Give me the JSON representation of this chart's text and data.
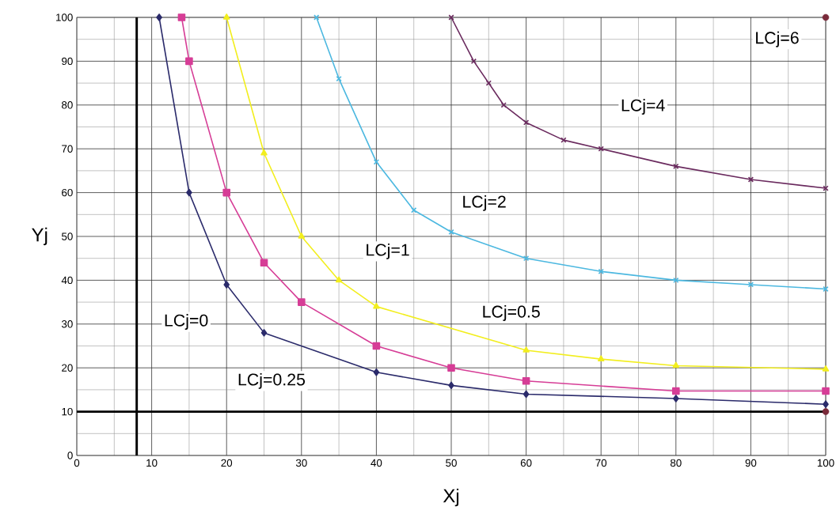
{
  "chart_data": {
    "type": "line",
    "xlabel": "Xj",
    "ylabel": "Yj",
    "xlim": [
      0,
      100
    ],
    "ylim": [
      0,
      100
    ],
    "xticks": [
      0,
      10,
      20,
      30,
      40,
      50,
      60,
      70,
      80,
      90,
      100
    ],
    "yticks": [
      0,
      10,
      20,
      30,
      40,
      50,
      60,
      70,
      80,
      90,
      100
    ],
    "grid": true,
    "line_style": "solid",
    "series": [
      {
        "color": "#2b2b6b",
        "marker": "diamond",
        "x": [
          11,
          15,
          20,
          25,
          40,
          50,
          60,
          80,
          100
        ],
        "values": [
          100,
          60,
          39,
          28,
          19,
          16,
          14,
          13,
          11.7
        ]
      },
      {
        "color": "#d63d96",
        "marker": "square",
        "x": [
          14,
          15,
          20,
          25,
          30,
          40,
          50,
          60,
          80,
          100
        ],
        "values": [
          100,
          90,
          60,
          44,
          35,
          25,
          20,
          17,
          14.7,
          14.7
        ]
      },
      {
        "color": "#f2ee1e",
        "marker": "triangle",
        "x": [
          20,
          25,
          30,
          35,
          40,
          60,
          70,
          80,
          100
        ],
        "values": [
          100,
          69,
          50,
          40,
          34,
          24,
          22,
          20.5,
          19.7
        ]
      },
      {
        "color": "#4cb8e0",
        "marker": "cross",
        "x": [
          32,
          35,
          40,
          45,
          50,
          60,
          70,
          80,
          90,
          100
        ],
        "values": [
          100,
          86,
          67,
          56,
          51,
          45,
          42,
          40,
          39,
          38
        ]
      },
      {
        "color": "#6a2a5e",
        "marker": "cross",
        "x": [
          50,
          53,
          55,
          57,
          60,
          65,
          70,
          80,
          90,
          100
        ],
        "values": [
          100,
          90,
          85,
          80,
          76,
          72,
          70,
          66,
          63,
          61
        ]
      },
      {
        "type": "scatter",
        "color": "#7a2a3a",
        "marker": "circle",
        "x": [
          100,
          100
        ],
        "values": [
          100,
          10
        ]
      }
    ],
    "ref_lines": [
      {
        "axis": "x",
        "value": 8,
        "color": "#000000"
      },
      {
        "axis": "y",
        "value": 10,
        "color": "#000000"
      }
    ],
    "annotations": [
      "LCj=0",
      "LCj=0.25",
      "LCj=0.5",
      "LCj=1",
      "LCj=2",
      "LCj=4",
      "LCj=6"
    ]
  }
}
